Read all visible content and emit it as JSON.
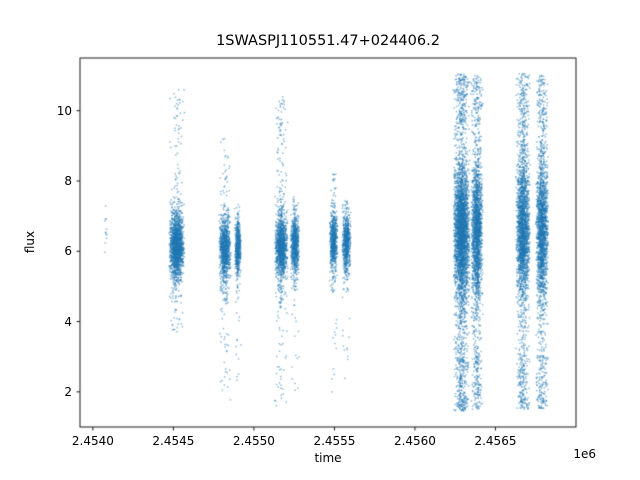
{
  "figure": {
    "background": "#ffffff"
  },
  "chart_data": {
    "type": "scatter",
    "title": "1SWASPJ110551.47+024406.2",
    "xlabel": "time",
    "ylabel": "flux",
    "x_offset_label": "1e6",
    "xlim": [
      2453920,
      2457000
    ],
    "ylim": [
      1.0,
      11.5
    ],
    "grid": false,
    "legend": "none",
    "point_color": "#1f77b4",
    "point_alpha": 0.5,
    "marker_size": 1.5,
    "x_ticks": [
      {
        "value": 2454000,
        "label": "2.4540"
      },
      {
        "value": 2454500,
        "label": "2.4545"
      },
      {
        "value": 2455000,
        "label": "2.4550"
      },
      {
        "value": 2455500,
        "label": "2.4555"
      },
      {
        "value": 2456000,
        "label": "2.4560"
      },
      {
        "value": 2456500,
        "label": "2.4565"
      }
    ],
    "y_ticks": [
      {
        "value": 2,
        "label": "2"
      },
      {
        "value": 4,
        "label": "4"
      },
      {
        "value": 6,
        "label": "6"
      },
      {
        "value": 8,
        "label": "8"
      },
      {
        "value": 10,
        "label": "10"
      }
    ],
    "clusters": [
      {
        "x_center": 2454080,
        "x_halfwidth": 8,
        "bands": [
          {
            "flux_min": 5.9,
            "flux_max": 7.3,
            "count": 12,
            "dist": "uniform"
          }
        ]
      },
      {
        "x_center": 2454520,
        "x_halfwidth": 50,
        "bands": [
          {
            "flux_min": 5.3,
            "flux_max": 7.0,
            "count": 1500,
            "dist": "gauss"
          },
          {
            "flux_min": 4.5,
            "flux_max": 7.6,
            "count": 200,
            "dist": "uniform"
          },
          {
            "flux_min": 7.6,
            "flux_max": 10.6,
            "count": 60,
            "dist": "uniform"
          },
          {
            "flux_min": 3.6,
            "flux_max": 4.5,
            "count": 20,
            "dist": "uniform"
          }
        ]
      },
      {
        "x_center": 2454820,
        "x_halfwidth": 38,
        "bands": [
          {
            "flux_min": 5.2,
            "flux_max": 6.9,
            "count": 900,
            "dist": "gauss"
          },
          {
            "flux_min": 4.3,
            "flux_max": 7.4,
            "count": 140,
            "dist": "uniform"
          },
          {
            "flux_min": 7.4,
            "flux_max": 9.4,
            "count": 30,
            "dist": "uniform"
          },
          {
            "flux_min": 1.7,
            "flux_max": 4.3,
            "count": 30,
            "dist": "uniform"
          }
        ]
      },
      {
        "x_center": 2454900,
        "x_halfwidth": 20,
        "bands": [
          {
            "flux_min": 5.3,
            "flux_max": 6.9,
            "count": 500,
            "dist": "gauss"
          },
          {
            "flux_min": 4.5,
            "flux_max": 7.3,
            "count": 60,
            "dist": "uniform"
          },
          {
            "flux_min": 2.2,
            "flux_max": 4.5,
            "count": 12,
            "dist": "uniform"
          }
        ]
      },
      {
        "x_center": 2455170,
        "x_halfwidth": 42,
        "bands": [
          {
            "flux_min": 5.3,
            "flux_max": 7.0,
            "count": 1100,
            "dist": "gauss"
          },
          {
            "flux_min": 4.4,
            "flux_max": 7.8,
            "count": 160,
            "dist": "uniform"
          },
          {
            "flux_min": 7.8,
            "flux_max": 10.4,
            "count": 70,
            "dist": "uniform"
          },
          {
            "flux_min": 1.5,
            "flux_max": 4.4,
            "count": 40,
            "dist": "uniform"
          }
        ]
      },
      {
        "x_center": 2455255,
        "x_halfwidth": 28,
        "bands": [
          {
            "flux_min": 5.4,
            "flux_max": 7.0,
            "count": 700,
            "dist": "gauss"
          },
          {
            "flux_min": 4.6,
            "flux_max": 7.6,
            "count": 80,
            "dist": "uniform"
          },
          {
            "flux_min": 2.0,
            "flux_max": 4.6,
            "count": 15,
            "dist": "uniform"
          }
        ]
      },
      {
        "x_center": 2455495,
        "x_halfwidth": 26,
        "bands": [
          {
            "flux_min": 5.5,
            "flux_max": 7.0,
            "count": 600,
            "dist": "gauss"
          },
          {
            "flux_min": 4.8,
            "flux_max": 7.6,
            "count": 70,
            "dist": "uniform"
          },
          {
            "flux_min": 7.6,
            "flux_max": 8.2,
            "count": 15,
            "dist": "uniform"
          },
          {
            "flux_min": 2.0,
            "flux_max": 4.8,
            "count": 12,
            "dist": "uniform"
          }
        ]
      },
      {
        "x_center": 2455575,
        "x_halfwidth": 28,
        "bands": [
          {
            "flux_min": 5.5,
            "flux_max": 7.0,
            "count": 650,
            "dist": "gauss"
          },
          {
            "flux_min": 4.8,
            "flux_max": 7.5,
            "count": 70,
            "dist": "uniform"
          },
          {
            "flux_min": 2.2,
            "flux_max": 4.8,
            "count": 12,
            "dist": "uniform"
          }
        ]
      },
      {
        "x_center": 2456290,
        "x_halfwidth": 52,
        "bands": [
          {
            "flux_min": 4.8,
            "flux_max": 8.3,
            "count": 2600,
            "dist": "gauss"
          },
          {
            "flux_min": 3.0,
            "flux_max": 9.6,
            "count": 700,
            "dist": "uniform"
          },
          {
            "flux_min": 9.6,
            "flux_max": 11.05,
            "count": 220,
            "dist": "uniform"
          },
          {
            "flux_min": 1.45,
            "flux_max": 3.0,
            "count": 260,
            "dist": "uniform"
          }
        ]
      },
      {
        "x_center": 2456385,
        "x_halfwidth": 38,
        "bands": [
          {
            "flux_min": 4.8,
            "flux_max": 8.3,
            "count": 1500,
            "dist": "gauss"
          },
          {
            "flux_min": 3.0,
            "flux_max": 9.6,
            "count": 400,
            "dist": "uniform"
          },
          {
            "flux_min": 9.6,
            "flux_max": 11.0,
            "count": 120,
            "dist": "uniform"
          },
          {
            "flux_min": 1.5,
            "flux_max": 3.0,
            "count": 140,
            "dist": "uniform"
          }
        ]
      },
      {
        "x_center": 2456670,
        "x_halfwidth": 45,
        "bands": [
          {
            "flux_min": 4.8,
            "flux_max": 8.4,
            "count": 1800,
            "dist": "gauss"
          },
          {
            "flux_min": 3.0,
            "flux_max": 9.6,
            "count": 450,
            "dist": "uniform"
          },
          {
            "flux_min": 9.6,
            "flux_max": 11.05,
            "count": 150,
            "dist": "uniform"
          },
          {
            "flux_min": 1.5,
            "flux_max": 3.0,
            "count": 170,
            "dist": "uniform"
          }
        ]
      },
      {
        "x_center": 2456790,
        "x_halfwidth": 40,
        "bands": [
          {
            "flux_min": 4.8,
            "flux_max": 8.4,
            "count": 1500,
            "dist": "gauss"
          },
          {
            "flux_min": 3.0,
            "flux_max": 9.6,
            "count": 380,
            "dist": "uniform"
          },
          {
            "flux_min": 9.6,
            "flux_max": 11.0,
            "count": 120,
            "dist": "uniform"
          },
          {
            "flux_min": 1.5,
            "flux_max": 3.0,
            "count": 140,
            "dist": "uniform"
          }
        ]
      }
    ]
  }
}
